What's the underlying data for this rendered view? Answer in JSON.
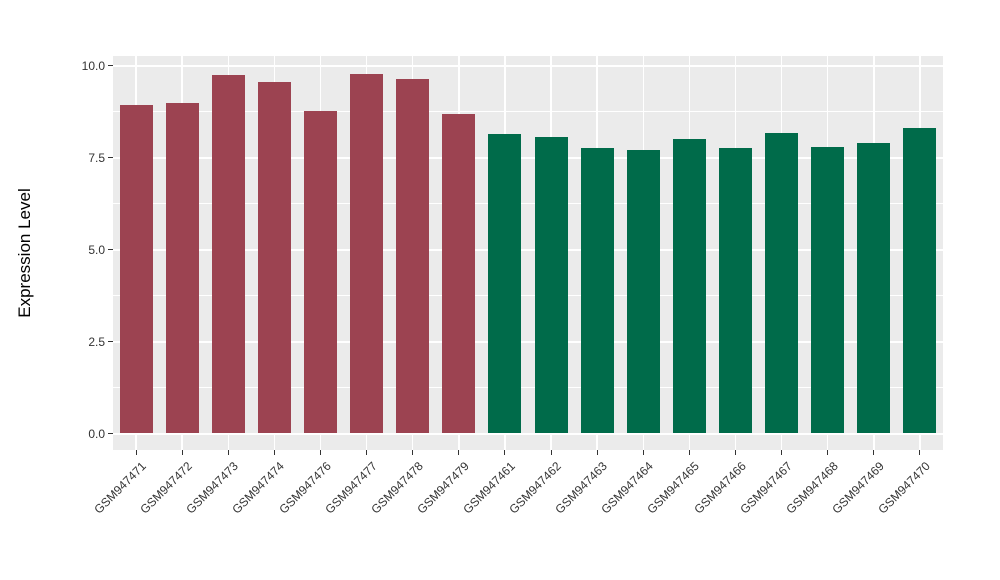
{
  "figure": {
    "background": "#ffffff",
    "panel_background": "#ebebeb",
    "grid_color": "#ffffff",
    "tick_color": "#333333",
    "axis_text_color": "#333333"
  },
  "chart_data": {
    "type": "bar",
    "title": "",
    "xlabel": "",
    "ylabel": "Expression Level",
    "ylim": [
      0,
      10.3
    ],
    "y_major_ticks": [
      0,
      2.5,
      5,
      7.5,
      10
    ],
    "y_tick_labels": [
      "0.0",
      "2.5",
      "5.0",
      "7.5",
      "10.0"
    ],
    "y_minor_ticks": [
      1.25,
      3.75,
      6.25,
      8.75
    ],
    "grid": "white major+minor horizontal, major vertical at category centers, on gray panel",
    "legend_position": "none",
    "categories": [
      "GSM947471",
      "GSM947472",
      "GSM947473",
      "GSM947474",
      "GSM947476",
      "GSM947477",
      "GSM947478",
      "GSM947479",
      "GSM947461",
      "GSM947462",
      "GSM947463",
      "GSM947464",
      "GSM947465",
      "GSM947466",
      "GSM947467",
      "GSM947468",
      "GSM947469",
      "GSM947470"
    ],
    "values": [
      8.93,
      8.97,
      9.75,
      9.55,
      8.76,
      9.78,
      9.64,
      8.68,
      8.15,
      8.07,
      7.77,
      7.71,
      8.01,
      7.77,
      8.16,
      7.79,
      7.9,
      8.31
    ],
    "groups": [
      "group1",
      "group1",
      "group1",
      "group1",
      "group1",
      "group1",
      "group1",
      "group1",
      "group2",
      "group2",
      "group2",
      "group2",
      "group2",
      "group2",
      "group2",
      "group2",
      "group2",
      "group2"
    ],
    "group_colors": {
      "group1": "#9c4351",
      "group2": "#006b4a"
    }
  }
}
